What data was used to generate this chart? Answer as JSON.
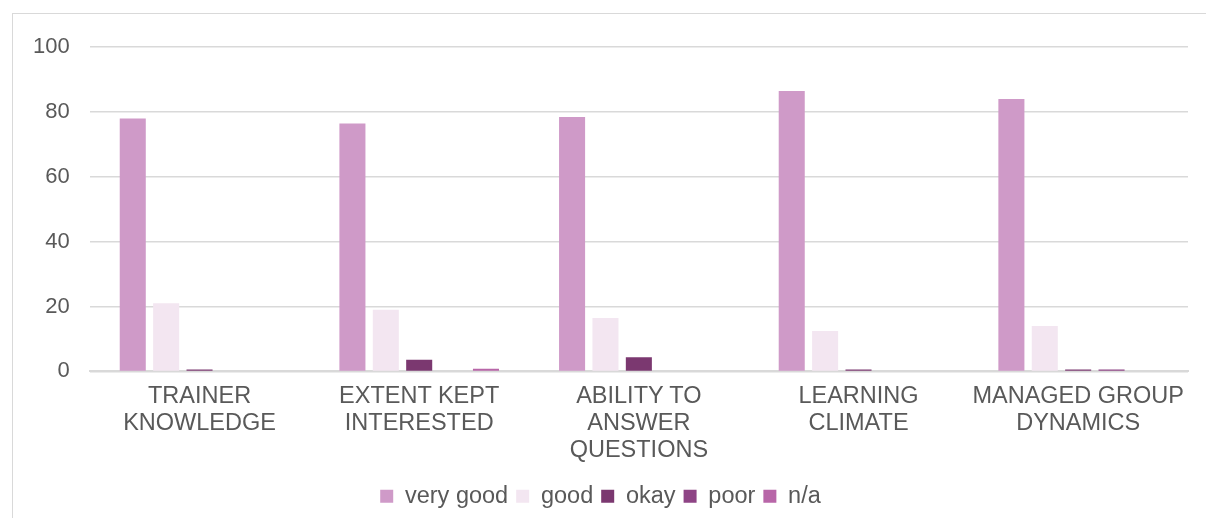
{
  "chart_data": {
    "type": "bar",
    "categories": [
      "TRAINER KNOWLEDGE",
      "EXTENT KEPT INTERESTED",
      "ABILITY TO ANSWER QUESTIONS",
      "LEARNING CLIMATE",
      "MANAGED GROUP DYNAMICS"
    ],
    "series": [
      {
        "name": "very good",
        "color": "#cf9ac8",
        "values": [
          78,
          76.5,
          78.5,
          86.5,
          84
        ]
      },
      {
        "name": "good",
        "color": "#f3e6f1",
        "values": [
          21,
          19,
          16.5,
          12.5,
          14
        ]
      },
      {
        "name": "okay",
        "color": "#7b3870",
        "values": [
          0.6,
          3.6,
          4.4,
          0.6,
          0.6
        ]
      },
      {
        "name": "poor",
        "color": "#8e4485",
        "values": [
          0,
          0,
          0,
          0,
          0.6
        ]
      },
      {
        "name": "n/a",
        "color": "#b866a8",
        "values": [
          0,
          0.8,
          0,
          0,
          0
        ]
      }
    ],
    "ylim": [
      0,
      100
    ],
    "yticks": [
      0,
      20,
      40,
      60,
      80,
      100
    ],
    "grid": "y",
    "legend": "bottom"
  }
}
